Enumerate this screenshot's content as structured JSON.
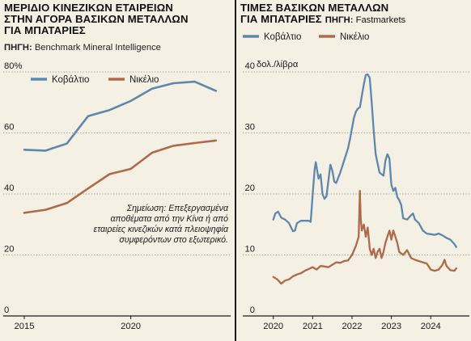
{
  "colors": {
    "cobalt": "#5f87ad",
    "nickel": "#b06a4a",
    "background": "#f4f0e4",
    "grid": "#9a9a92",
    "axis": "#1a1a1a"
  },
  "left": {
    "title_lines": [
      "ΜΕΡΙΔΙΟ ΚΙΝΕΖΙΚΩΝ ΕΤΑΙΡΕΙΩΝ",
      "ΣΤΗΝ ΑΓΟΡΑ ΒΑΣΙΚΩΝ ΜΕΤΑΛΛΩΝ",
      "ΓΙΑ ΜΠΑΤΑΡΙΕΣ"
    ],
    "source_label": "ΠΗΓΗ:",
    "source_value": "Benchmark Mineral Intelligence",
    "note_lines": [
      "Σημείωση: Επεξεργασμένα",
      "αποθέματα από την Κίνα ή από",
      "εταιρείες κινεζικών κατά πλειοψηφία",
      "συμφερόντων στο εξωτερικό."
    ]
  },
  "right": {
    "title_lines": [
      "ΤΙΜΕΣ ΒΑΣΙΚΩΝ ΜΕΤΑΛΛΩΝ",
      "ΓΙΑ ΜΠΑΤΑΡΙΕΣ"
    ],
    "source_label": "ΠΗΓΗ:",
    "source_value": "Fastmarkets",
    "unit_label": "δολ./λίβρα"
  },
  "chart_data": [
    {
      "type": "line",
      "title": "ΜΕΡΙΔΙΟ ΚΙΝΕΖΙΚΩΝ ΕΤΑΙΡΕΙΩΝ ΣΤΗΝ ΑΓΟΡΑ ΒΑΣΙΚΩΝ ΜΕΤΑΛΛΩΝ ΓΙΑ ΜΠΑΤΑΡΙΕΣ",
      "ylim": [
        0,
        80
      ],
      "yticks": [
        0,
        20,
        40,
        60,
        80
      ],
      "ytick_labels": [
        "0",
        "20",
        "40",
        "60",
        "80%"
      ],
      "xlim": [
        2015,
        2024.5
      ],
      "xticks": [
        2015,
        2020
      ],
      "xtick_labels": [
        "2015",
        "2020"
      ],
      "grid": true,
      "legend": "top-left",
      "series": [
        {
          "name": "Κοβάλτιο",
          "color": "#5f87ad",
          "x": [
            2015,
            2016,
            2017,
            2018,
            2019,
            2020,
            2021,
            2022,
            2023,
            2024
          ],
          "y": [
            54.5,
            54.2,
            56.5,
            65.5,
            67.5,
            70.5,
            74.5,
            76.3,
            76.8,
            73.8
          ]
        },
        {
          "name": "Νικέλιο",
          "color": "#b06a4a",
          "x": [
            2015,
            2016,
            2017,
            2018,
            2019,
            2020,
            2021,
            2022,
            2023,
            2024
          ],
          "y": [
            33.8,
            34.8,
            37.0,
            41.8,
            46.5,
            48.2,
            53.5,
            55.8,
            56.7,
            57.5
          ]
        }
      ]
    },
    {
      "type": "line",
      "title": "ΤΙΜΕΣ ΒΑΣΙΚΩΝ ΜΕΤΑΛΛΩΝ ΓΙΑ ΜΠΑΤΑΡΙΕΣ",
      "ylabel": "δολ./λίβρα",
      "ylim": [
        0,
        40
      ],
      "yticks": [
        0,
        10,
        20,
        30,
        40
      ],
      "ytick_labels": [
        "0",
        "10",
        "20",
        "30",
        "40"
      ],
      "xlim": [
        2019.8,
        2024.9
      ],
      "xticks": [
        2020,
        2021,
        2022,
        2023,
        2024
      ],
      "xtick_labels": [
        "2020",
        "2021",
        "2022",
        "2023",
        "2024"
      ],
      "grid": true,
      "legend": "top-left",
      "series": [
        {
          "name": "Κοβάλτιο",
          "color": "#5f87ad",
          "x": [
            2020.0,
            2020.05,
            2020.12,
            2020.2,
            2020.3,
            2020.4,
            2020.5,
            2020.55,
            2020.6,
            2020.7,
            2020.8,
            2020.9,
            2020.95,
            2021.0,
            2021.05,
            2021.08,
            2021.15,
            2021.2,
            2021.25,
            2021.3,
            2021.35,
            2021.45,
            2021.5,
            2021.55,
            2021.6,
            2021.7,
            2021.8,
            2021.85,
            2021.9,
            2021.95,
            2022.0,
            2022.05,
            2022.1,
            2022.15,
            2022.2,
            2022.3,
            2022.35,
            2022.4,
            2022.45,
            2022.5,
            2022.55,
            2022.6,
            2022.7,
            2022.8,
            2022.85,
            2022.9,
            2022.95,
            2023.0,
            2023.05,
            2023.1,
            2023.15,
            2023.2,
            2023.25,
            2023.3,
            2023.4,
            2023.5,
            2023.55,
            2023.6,
            2023.7,
            2023.8,
            2023.9,
            2024.0,
            2024.1,
            2024.2,
            2024.3,
            2024.4,
            2024.5,
            2024.6,
            2024.65
          ],
          "y": [
            15.8,
            16.8,
            17.1,
            16.1,
            15.8,
            15.2,
            13.9,
            14.0,
            15.2,
            15.6,
            15.6,
            15.6,
            15.4,
            20.0,
            24.0,
            25.2,
            22.5,
            23.2,
            20.0,
            19.2,
            19.6,
            24.8,
            23.8,
            22.0,
            21.8,
            23.5,
            25.5,
            26.5,
            27.5,
            29.0,
            30.8,
            32.5,
            33.5,
            34.0,
            34.2,
            38.0,
            39.5,
            39.6,
            39.0,
            35.0,
            30.5,
            26.5,
            23.5,
            23.0,
            25.5,
            26.5,
            25.8,
            21.5,
            20.5,
            21.0,
            19.5,
            19.0,
            18.2,
            16.0,
            15.8,
            16.5,
            16.8,
            15.8,
            15.2,
            14.0,
            13.5,
            13.4,
            13.3,
            13.5,
            13.2,
            12.8,
            12.5,
            11.8,
            11.3
          ]
        },
        {
          "name": "Νικέλιο",
          "color": "#b06a4a",
          "x": [
            2020.0,
            2020.1,
            2020.2,
            2020.3,
            2020.4,
            2020.5,
            2020.6,
            2020.7,
            2020.8,
            2020.9,
            2021.0,
            2021.1,
            2021.2,
            2021.3,
            2021.4,
            2021.5,
            2021.6,
            2021.7,
            2021.8,
            2021.9,
            2022.0,
            2022.1,
            2022.17,
            2022.2,
            2022.22,
            2022.25,
            2022.3,
            2022.35,
            2022.4,
            2022.45,
            2022.5,
            2022.55,
            2022.6,
            2022.65,
            2022.7,
            2022.75,
            2022.8,
            2022.85,
            2022.9,
            2022.95,
            2023.0,
            2023.05,
            2023.1,
            2023.15,
            2023.2,
            2023.3,
            2023.4,
            2023.5,
            2023.6,
            2023.7,
            2023.8,
            2023.9,
            2024.0,
            2024.1,
            2024.2,
            2024.3,
            2024.35,
            2024.4,
            2024.5,
            2024.6,
            2024.65
          ],
          "y": [
            6.4,
            6.0,
            5.3,
            5.8,
            6.0,
            6.5,
            6.8,
            7.0,
            7.4,
            7.7,
            8.0,
            7.6,
            8.2,
            8.1,
            8.0,
            8.4,
            8.8,
            8.7,
            9.0,
            9.1,
            10.0,
            11.5,
            13.0,
            20.5,
            16.0,
            14.0,
            15.0,
            13.0,
            14.5,
            11.0,
            10.0,
            11.0,
            9.5,
            10.5,
            11.0,
            9.5,
            10.5,
            12.0,
            13.0,
            14.0,
            12.5,
            14.0,
            13.0,
            12.0,
            10.5,
            10.0,
            10.8,
            9.5,
            9.2,
            9.0,
            8.8,
            8.6,
            7.6,
            7.4,
            7.6,
            8.4,
            9.2,
            8.2,
            7.5,
            7.4,
            7.8
          ]
        }
      ]
    }
  ]
}
